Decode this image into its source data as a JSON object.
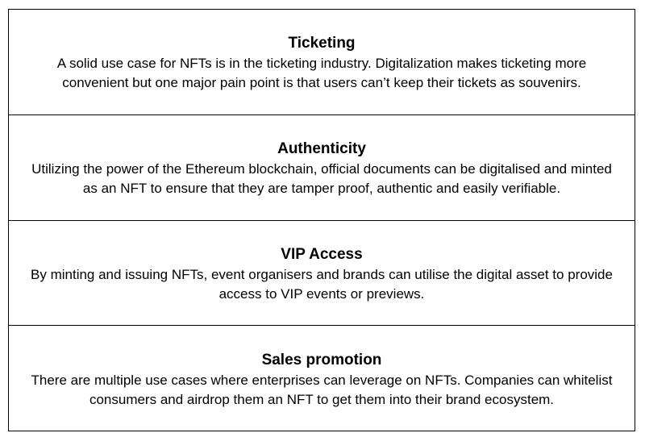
{
  "sections": [
    {
      "title": "Ticketing",
      "body": "A solid use case for NFTs is in the ticketing industry. Digitalization makes ticketing more convenient but one major pain point is that users can’t keep their tickets as souvenirs."
    },
    {
      "title": "Authenticity",
      "body": "Utilizing the power of the Ethereum blockchain, official documents can be digitalised and minted as an NFT to ensure that they are tamper proof, authentic and easily verifiable."
    },
    {
      "title": "VIP Access",
      "body": "By minting and issuing NFTs, event organisers and brands can utilise the digital asset to provide access to VIP events or previews."
    },
    {
      "title": "Sales promotion",
      "body": "There are multiple use cases where enterprises can leverage on NFTs. Companies can whitelist consumers and airdrop them an NFT to get them into their brand ecosystem."
    }
  ]
}
